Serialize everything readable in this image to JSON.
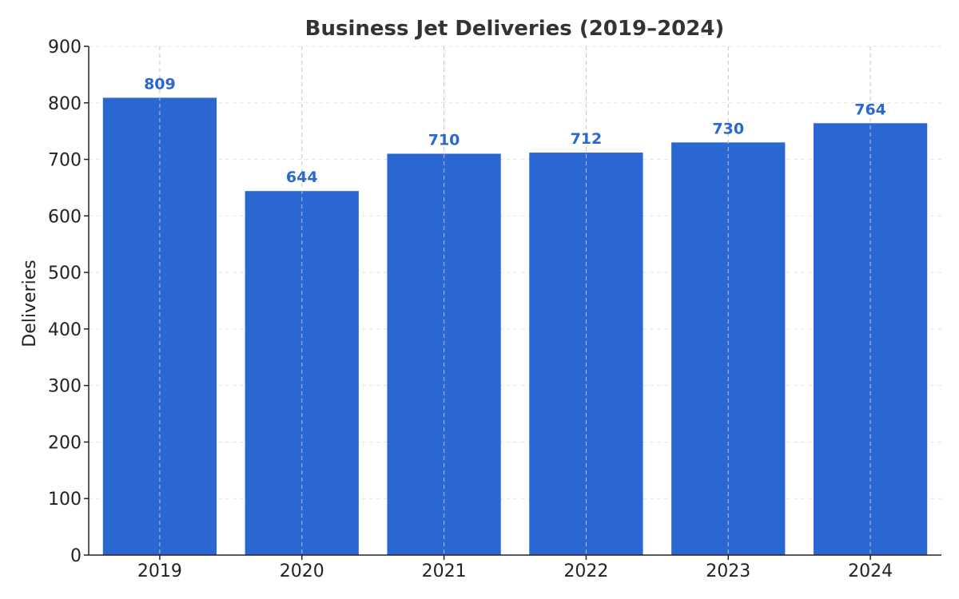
{
  "chart_data": {
    "type": "bar",
    "title": "Business Jet Deliveries (2019–2024)",
    "xlabel": "",
    "ylabel": "Deliveries",
    "categories": [
      "2019",
      "2020",
      "2021",
      "2022",
      "2023",
      "2024"
    ],
    "values": [
      809,
      644,
      710,
      712,
      730,
      764
    ],
    "data_labels": [
      "809",
      "644",
      "710",
      "712",
      "730",
      "764"
    ],
    "ylim": [
      0,
      900
    ],
    "yticks": [
      0,
      100,
      200,
      300,
      400,
      500,
      600,
      700,
      800,
      900
    ],
    "ytick_labels": [
      "0",
      "100",
      "200",
      "300",
      "400",
      "500",
      "600",
      "700",
      "800",
      "900"
    ],
    "grid": true,
    "bar_color": "#2b67d1",
    "label_color": "#2b67d1"
  }
}
